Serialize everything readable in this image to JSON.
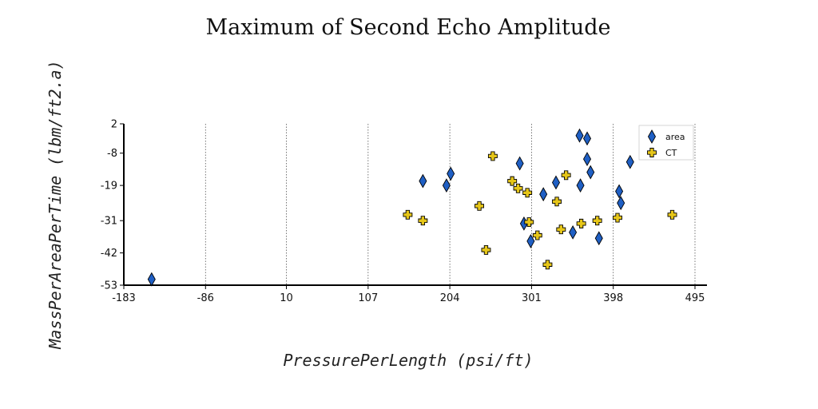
{
  "chart_data": {
    "type": "scatter",
    "title": "Maximum of Second Echo Amplitude",
    "xlabel": "PressurePerLength (psi/ft)",
    "ylabel": "MassPerAreaPerTime  (lbm/ft2.a)",
    "xlim": [
      -183,
      495
    ],
    "ylim": [
      -53,
      2
    ],
    "x_ticks": [
      "-183",
      "-86",
      "10",
      "107",
      "204",
      "301",
      "398",
      "495"
    ],
    "y_ticks": [
      "-53",
      "-42",
      "-31",
      "-19",
      "-8",
      "2"
    ],
    "grid": "vertical-dotted",
    "legend_position": "top-right",
    "series": [
      {
        "name": "area",
        "marker": "diamond",
        "color": "#1f5fc4",
        "points": [
          [
            -150,
            -51
          ],
          [
            172,
            -17.5
          ],
          [
            200,
            -19
          ],
          [
            205,
            -15
          ],
          [
            287,
            -11.5
          ],
          [
            292,
            -32
          ],
          [
            300,
            -38
          ],
          [
            315,
            -22
          ],
          [
            330,
            -18
          ],
          [
            350,
            -35
          ],
          [
            359,
            -19
          ],
          [
            358,
            -2
          ],
          [
            367,
            -10
          ],
          [
            371,
            -14.5
          ],
          [
            367,
            -3
          ],
          [
            381,
            -37
          ],
          [
            405,
            -21
          ],
          [
            407,
            -25
          ],
          [
            418,
            -11
          ]
        ]
      },
      {
        "name": "CT",
        "marker": "cross",
        "color": "#e6c619",
        "points": [
          [
            154,
            -29
          ],
          [
            172,
            -31
          ],
          [
            239,
            -26
          ],
          [
            247,
            -41
          ],
          [
            255,
            -9
          ],
          [
            278,
            -17.5
          ],
          [
            285,
            -20
          ],
          [
            296,
            -21.5
          ],
          [
            298,
            -31.5
          ],
          [
            308,
            -36
          ],
          [
            320,
            -46
          ],
          [
            331,
            -24.5
          ],
          [
            336,
            -34
          ],
          [
            342,
            -15.5
          ],
          [
            360,
            -32
          ],
          [
            379,
            -31
          ],
          [
            403,
            -30
          ],
          [
            468,
            -29
          ]
        ]
      }
    ]
  }
}
